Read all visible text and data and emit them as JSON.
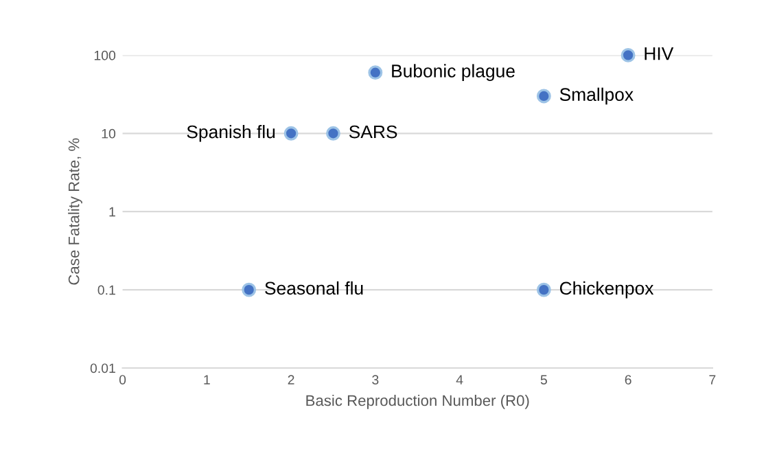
{
  "chart_data": {
    "type": "scatter",
    "xlabel": "Basic Reproduction Number (R0)",
    "ylabel": "Case Fatality Rate, %",
    "x": [
      2,
      2.5,
      3,
      5,
      6,
      1.5,
      5
    ],
    "values": [
      10,
      10,
      60,
      30,
      100,
      0.1,
      0.1
    ],
    "color": "#4472c4",
    "marker": "circle",
    "log": "y",
    "xlim": [
      0,
      7
    ],
    "xticks": [
      0,
      1,
      2,
      3,
      4,
      5,
      6,
      7
    ],
    "ylim": [
      0.01,
      100
    ],
    "yticks": [
      0.01,
      0.1,
      1,
      10,
      100
    ],
    "grid": "y",
    "annotations": [
      {
        "text": "Spanish flu",
        "x": 2,
        "y": 10
      },
      {
        "text": "SARS",
        "x": 2.5,
        "y": 10
      },
      {
        "text": "Bubonic plague",
        "x": 3,
        "y": 60
      },
      {
        "text": "Smallpox",
        "x": 5,
        "y": 30
      },
      {
        "text": "HIV",
        "x": 6,
        "y": 100
      },
      {
        "text": "Seasonal flu",
        "x": 1.5,
        "y": 0.1
      },
      {
        "text": "Chickenpox",
        "x": 5,
        "y": 0.1
      }
    ]
  }
}
